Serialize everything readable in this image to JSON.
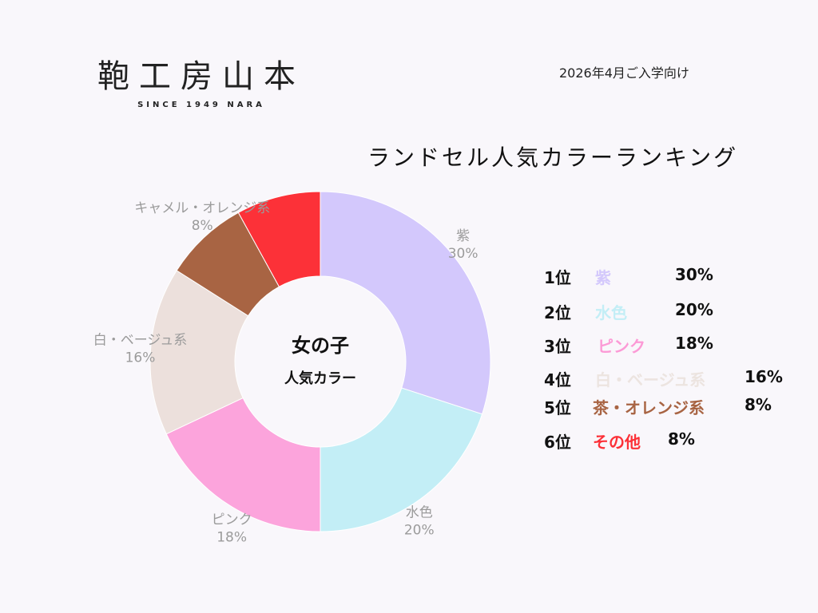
{
  "brand": {
    "name": "鞄工房山本",
    "tagline": "SINCE 1949 NARA"
  },
  "subtitle": "2026年4月ご入学向け",
  "chart_data": {
    "type": "pie",
    "donut": true,
    "title": "ランドセル人気カラーランキング",
    "center_title": "女の子",
    "center_subtitle": "人気カラー",
    "unit": "%",
    "slices": [
      {
        "label": "紫",
        "value": 30,
        "color": "#d3c8fc"
      },
      {
        "label": "水色",
        "value": 20,
        "color": "#c3eef6"
      },
      {
        "label": "ピンク",
        "value": 18,
        "color": "#fca4dc"
      },
      {
        "label": "白・ベージュ系",
        "value": 16,
        "color": "#ece0dc"
      },
      {
        "label": "キャメル・オレンジ系",
        "value": 8,
        "color": "#a86443"
      },
      {
        "label": "",
        "value": 8,
        "color": "#fc3138"
      }
    ]
  },
  "ranking": [
    {
      "position": "1位",
      "name": "紫",
      "value": "30%",
      "color": "#d3c8fc"
    },
    {
      "position": "2位",
      "name": "水色",
      "value": "20%",
      "color": "#c3eef6"
    },
    {
      "position": "3位",
      "name": "ピンク",
      "value": "18%",
      "color": "#fc9ad6"
    },
    {
      "position": "4位",
      "name": "白・ベージュ系",
      "value": "16%",
      "color": "#ece4e0"
    },
    {
      "position": "5位",
      "name": "茶・オレンジ系",
      "value": "8%",
      "color": "#a86443"
    },
    {
      "position": "6位",
      "name": "その他",
      "value": "8%",
      "color": "#fc3138"
    }
  ]
}
